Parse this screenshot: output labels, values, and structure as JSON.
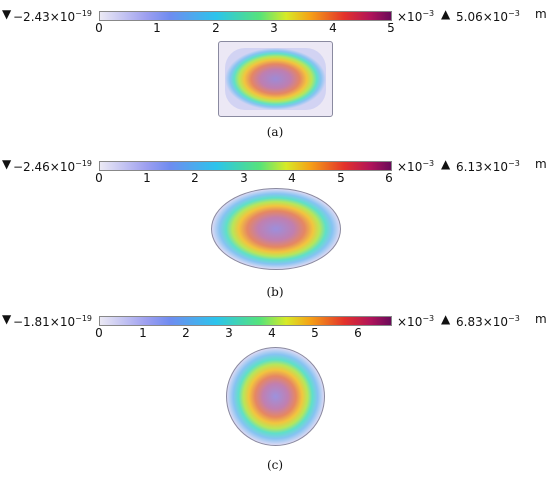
{
  "colorbar": {
    "exponent_label": "×10",
    "exponent_value": "−3",
    "unit": "m",
    "min_marker": "▼",
    "max_marker": "▲"
  },
  "panels": [
    {
      "min_value": "−2.43×10",
      "min_exp": "−19",
      "max_value": "5.06×10",
      "max_exp": "−3",
      "ticks": [
        "0",
        "1",
        "2",
        "3",
        "4",
        "5"
      ],
      "caption": "(a)",
      "shape": "rounded-rectangle"
    },
    {
      "min_value": "−2.46×10",
      "min_exp": "−19",
      "max_value": "6.13×10",
      "max_exp": "−3",
      "ticks": [
        "0",
        "1",
        "2",
        "3",
        "4",
        "5",
        "6"
      ],
      "caption": "(b)",
      "shape": "ellipse"
    },
    {
      "min_value": "−1.81×10",
      "min_exp": "−19",
      "max_value": "6.83×10",
      "max_exp": "−3",
      "ticks": [
        "0",
        "1",
        "2",
        "3",
        "4",
        "5",
        "6"
      ],
      "caption": "(c)",
      "shape": "circle"
    }
  ]
}
